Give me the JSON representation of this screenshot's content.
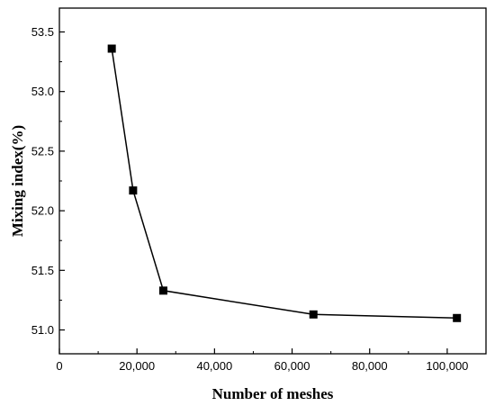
{
  "chart_data": {
    "type": "line",
    "xlabel": "Number of meshes",
    "ylabel": "Mixing index(%)",
    "xlim": [
      0,
      110000
    ],
    "ylim": [
      50.8,
      53.7
    ],
    "x_ticks": [
      0,
      20000,
      40000,
      60000,
      80000,
      100000
    ],
    "x_tick_labels": [
      "0",
      "20,000",
      "40,000",
      "60,000",
      "80,000",
      "100,000"
    ],
    "y_ticks": [
      51.0,
      51.5,
      52.0,
      52.5,
      53.0,
      53.5
    ],
    "y_tick_labels": [
      "51.0",
      "51.5",
      "52.0",
      "52.5",
      "53.0",
      "53.5"
    ],
    "grid": false,
    "series": [
      {
        "x": [
          13500,
          19000,
          26800,
          65500,
          102500
        ],
        "y": [
          53.36,
          52.17,
          51.33,
          51.13,
          51.1
        ]
      }
    ],
    "colors": {
      "line": "#000000",
      "marker": "#000000"
    }
  }
}
